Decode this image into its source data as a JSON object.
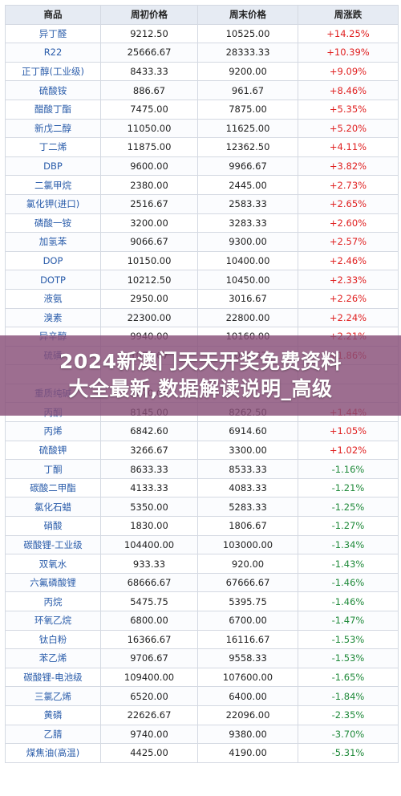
{
  "table": {
    "headers": [
      "商品",
      "周初价格",
      "周末价格",
      "周涨跌"
    ],
    "rows": [
      {
        "name": "异丁醛",
        "start": "9212.50",
        "end": "10525.00",
        "change": "+14.25%"
      },
      {
        "name": "R22",
        "start": "25666.67",
        "end": "28333.33",
        "change": "+10.39%"
      },
      {
        "name": "正丁醇(工业级)",
        "start": "8433.33",
        "end": "9200.00",
        "change": "+9.09%"
      },
      {
        "name": "硫酸铵",
        "start": "886.67",
        "end": "961.67",
        "change": "+8.46%"
      },
      {
        "name": "醋酸丁酯",
        "start": "7475.00",
        "end": "7875.00",
        "change": "+5.35%"
      },
      {
        "name": "新戊二醇",
        "start": "11050.00",
        "end": "11625.00",
        "change": "+5.20%"
      },
      {
        "name": "丁二烯",
        "start": "11875.00",
        "end": "12362.50",
        "change": "+4.11%"
      },
      {
        "name": "DBP",
        "start": "9600.00",
        "end": "9966.67",
        "change": "+3.82%"
      },
      {
        "name": "二氯甲烷",
        "start": "2380.00",
        "end": "2445.00",
        "change": "+2.73%"
      },
      {
        "name": "氯化钾(进口)",
        "start": "2516.67",
        "end": "2583.33",
        "change": "+2.65%"
      },
      {
        "name": "磷酸一铵",
        "start": "3200.00",
        "end": "3283.33",
        "change": "+2.60%"
      },
      {
        "name": "加氢苯",
        "start": "9066.67",
        "end": "9300.00",
        "change": "+2.57%"
      },
      {
        "name": "DOP",
        "start": "10150.00",
        "end": "10400.00",
        "change": "+2.46%"
      },
      {
        "name": "DOTP",
        "start": "10212.50",
        "end": "10450.00",
        "change": "+2.33%"
      },
      {
        "name": "液氨",
        "start": "2950.00",
        "end": "3016.67",
        "change": "+2.26%"
      },
      {
        "name": "溴素",
        "start": "22300.00",
        "end": "22800.00",
        "change": "+2.24%"
      },
      {
        "name": "异辛醇",
        "start": "9940.00",
        "end": "10160.00",
        "change": "+2.21%"
      },
      {
        "name": "硫磺",
        "start": "1076.67",
        "end": "1096.67",
        "change": "+1.86%"
      },
      {
        "name": "",
        "start": "",
        "end": "",
        "change": ""
      },
      {
        "name": "重质纯碱",
        "start": "2270.00",
        "end": "",
        "change": ""
      },
      {
        "name": "丙酮",
        "start": "8145.00",
        "end": "8262.50",
        "change": "+1.44%"
      },
      {
        "name": "丙烯",
        "start": "6842.60",
        "end": "6914.60",
        "change": "+1.05%"
      },
      {
        "name": "硫酸钾",
        "start": "3266.67",
        "end": "3300.00",
        "change": "+1.02%"
      },
      {
        "name": "丁酮",
        "start": "8633.33",
        "end": "8533.33",
        "change": "-1.16%"
      },
      {
        "name": "碳酸二甲酯",
        "start": "4133.33",
        "end": "4083.33",
        "change": "-1.21%"
      },
      {
        "name": "氯化石蜡",
        "start": "5350.00",
        "end": "5283.33",
        "change": "-1.25%"
      },
      {
        "name": "硝酸",
        "start": "1830.00",
        "end": "1806.67",
        "change": "-1.27%"
      },
      {
        "name": "碳酸锂-工业级",
        "start": "104400.00",
        "end": "103000.00",
        "change": "-1.34%"
      },
      {
        "name": "双氧水",
        "start": "933.33",
        "end": "920.00",
        "change": "-1.43%"
      },
      {
        "name": "六氟磷酸锂",
        "start": "68666.67",
        "end": "67666.67",
        "change": "-1.46%"
      },
      {
        "name": "丙烷",
        "start": "5475.75",
        "end": "5395.75",
        "change": "-1.46%"
      },
      {
        "name": "环氧乙烷",
        "start": "6800.00",
        "end": "6700.00",
        "change": "-1.47%"
      },
      {
        "name": "钛白粉",
        "start": "16366.67",
        "end": "16116.67",
        "change": "-1.53%"
      },
      {
        "name": "苯乙烯",
        "start": "9706.67",
        "end": "9558.33",
        "change": "-1.53%"
      },
      {
        "name": "碳酸锂-电池级",
        "start": "109400.00",
        "end": "107600.00",
        "change": "-1.65%"
      },
      {
        "name": "三氯乙烯",
        "start": "6520.00",
        "end": "6400.00",
        "change": "-1.84%"
      },
      {
        "name": "黄磷",
        "start": "22626.67",
        "end": "22096.00",
        "change": "-2.35%"
      },
      {
        "name": "乙腈",
        "start": "9740.00",
        "end": "9380.00",
        "change": "-3.70%"
      },
      {
        "name": "煤焦油(高温)",
        "start": "4425.00",
        "end": "4190.00",
        "change": "-5.31%"
      }
    ]
  },
  "banner": {
    "line1": "2024新澳门天天开奖免费资料",
    "line2": "大全最新,数据解读说明_高级"
  },
  "colors": {
    "up": "#e02020",
    "down": "#1f8a3a",
    "name": "#2a5caa",
    "header_bg": "#e6ebf3",
    "banner_bg": "#884e78"
  }
}
